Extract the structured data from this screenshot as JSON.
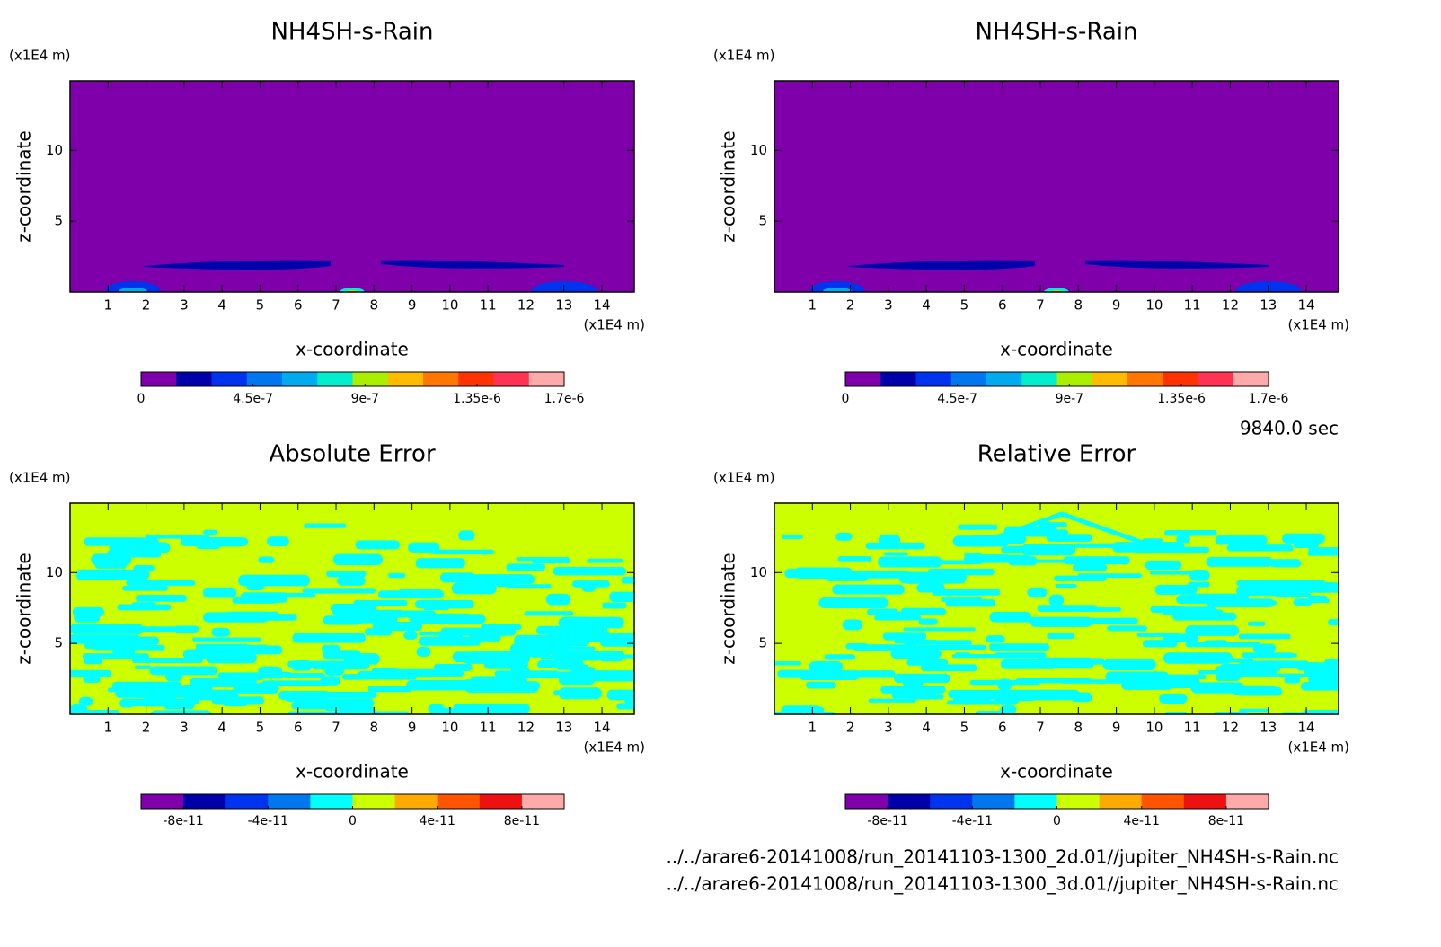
{
  "chart_data": [
    {
      "type": "contour",
      "title": "NH4SH-s-Rain",
      "xlabel": "x-coordinate",
      "ylabel": "z-coordinate",
      "xunit": "(x1E4 m)",
      "yunit": "(x1E4 m)",
      "xlim": [
        0,
        14.85
      ],
      "ylim": [
        0,
        14.9
      ],
      "xticks": [
        1,
        2,
        3,
        4,
        5,
        6,
        7,
        8,
        9,
        10,
        11,
        12,
        13,
        14
      ],
      "yticks": [
        5,
        10
      ],
      "colorbar": {
        "lim": [
          0,
          1.7e-06
        ],
        "ticks": [
          0,
          4.5e-07,
          9e-07,
          {
            "value": 1.35e-06,
            "label": "1.35e-6"
          },
          {
            "value": 1.7e-06,
            "label": "1.7e-6"
          }
        ],
        "colors": [
          "#7f00aa",
          "#0000aa",
          "#0033ee",
          "#0077ee",
          "#00aaee",
          "#00eecc",
          "#aaee00",
          "#ffbb00",
          "#ff7700",
          "#ff3300",
          "#ff3355",
          "#ffaaaa"
        ]
      }
    },
    {
      "type": "contour",
      "title": "NH4SH-s-Rain",
      "xlabel": "x-coordinate",
      "ylabel": "z-coordinate",
      "xunit": "(x1E4 m)",
      "yunit": "(x1E4 m)",
      "xlim": [
        0,
        14.85
      ],
      "ylim": [
        0,
        14.9
      ],
      "xticks": [
        1,
        2,
        3,
        4,
        5,
        6,
        7,
        8,
        9,
        10,
        11,
        12,
        13,
        14
      ],
      "yticks": [
        5,
        10
      ],
      "colorbar": {
        "lim": [
          0,
          1.7e-06
        ],
        "ticks": [
          0,
          4.5e-07,
          9e-07,
          {
            "value": 1.35e-06,
            "label": "1.35e-6"
          },
          {
            "value": 1.7e-06,
            "label": "1.7e-6"
          }
        ],
        "colors": [
          "#7f00aa",
          "#0000aa",
          "#0033ee",
          "#0077ee",
          "#00aaee",
          "#00eecc",
          "#aaee00",
          "#ffbb00",
          "#ff7700",
          "#ff3300",
          "#ff3355",
          "#ffaaaa"
        ]
      }
    },
    {
      "type": "contour",
      "title": "Absolute Error",
      "xlabel": "x-coordinate",
      "ylabel": "z-coordinate",
      "xunit": "(x1E4 m)",
      "yunit": "(x1E4 m)",
      "xlim": [
        0,
        14.85
      ],
      "ylim": [
        0,
        14.9
      ],
      "xticks": [
        1,
        2,
        3,
        4,
        5,
        6,
        7,
        8,
        9,
        10,
        11,
        12,
        13,
        14
      ],
      "yticks": [
        5,
        10
      ],
      "colorbar": {
        "lim": [
          -1e-10,
          1e-10
        ],
        "ticks": [
          -8e-11,
          -4e-11,
          0,
          4e-11,
          8e-11
        ],
        "colors": [
          "#7f00aa",
          "#0000aa",
          "#0033ee",
          "#0077ee",
          "#00ffff",
          "#ccff00",
          "#ffaa00",
          "#ff5500",
          "#ee1111",
          "#ffaaaa"
        ]
      }
    },
    {
      "type": "contour",
      "title": "Relative Error",
      "xlabel": "x-coordinate",
      "ylabel": "z-coordinate",
      "xunit": "(x1E4 m)",
      "yunit": "(x1E4 m)",
      "xlim": [
        0,
        14.85
      ],
      "ylim": [
        0,
        14.9
      ],
      "xticks": [
        1,
        2,
        3,
        4,
        5,
        6,
        7,
        8,
        9,
        10,
        11,
        12,
        13,
        14
      ],
      "yticks": [
        5,
        10
      ],
      "colorbar": {
        "lim": [
          -1e-10,
          1e-10
        ],
        "ticks": [
          -8e-11,
          -4e-11,
          0,
          4e-11,
          8e-11
        ],
        "colors": [
          "#7f00aa",
          "#0000aa",
          "#0033ee",
          "#0077ee",
          "#00ffff",
          "#ccff00",
          "#ffaa00",
          "#ff5500",
          "#ee1111",
          "#ffaaaa"
        ]
      }
    }
  ],
  "time_label": "9840.0 sec",
  "files": [
    "../../arare6-20141008/run_20141103-1300_2d.01//jupiter_NH4SH-s-Rain.nc",
    "../../arare6-20141008/run_20141103-1300_3d.01//jupiter_NH4SH-s-Rain.nc"
  ]
}
